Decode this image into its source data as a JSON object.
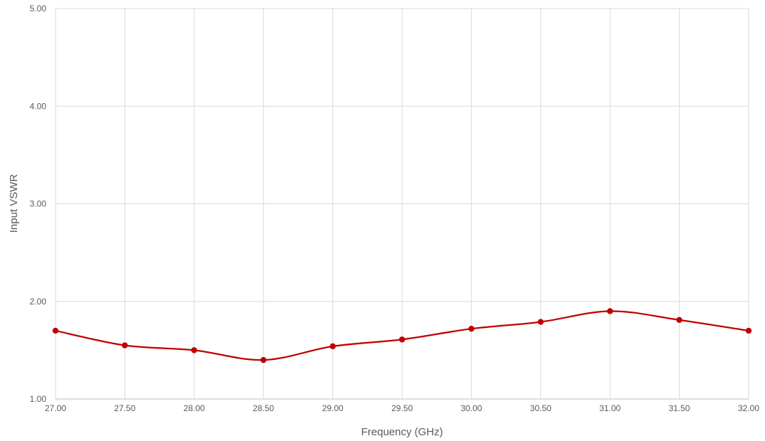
{
  "chart_data": {
    "type": "line",
    "title": "",
    "xlabel": "Frequency (GHz)",
    "ylabel": "Input VSWR",
    "xlim": [
      27.0,
      32.0
    ],
    "ylim": [
      1.0,
      5.0
    ],
    "x_ticks": [
      "27.00",
      "27.50",
      "28.00",
      "28.50",
      "29.00",
      "29.50",
      "30.00",
      "30.50",
      "31.00",
      "31.50",
      "32.00"
    ],
    "y_ticks": [
      "1.00",
      "2.00",
      "3.00",
      "4.00",
      "5.00"
    ],
    "grid": true,
    "legend": "none",
    "smooth": true,
    "series": [
      {
        "color": "#c00000",
        "marker": "circle",
        "x": [
          27.0,
          27.5,
          28.0,
          28.5,
          29.0,
          29.5,
          30.0,
          30.5,
          31.0,
          31.5,
          32.0
        ],
        "y": [
          1.7,
          1.55,
          1.5,
          1.4,
          1.54,
          1.61,
          1.72,
          1.79,
          1.9,
          1.81,
          1.7
        ]
      }
    ]
  }
}
